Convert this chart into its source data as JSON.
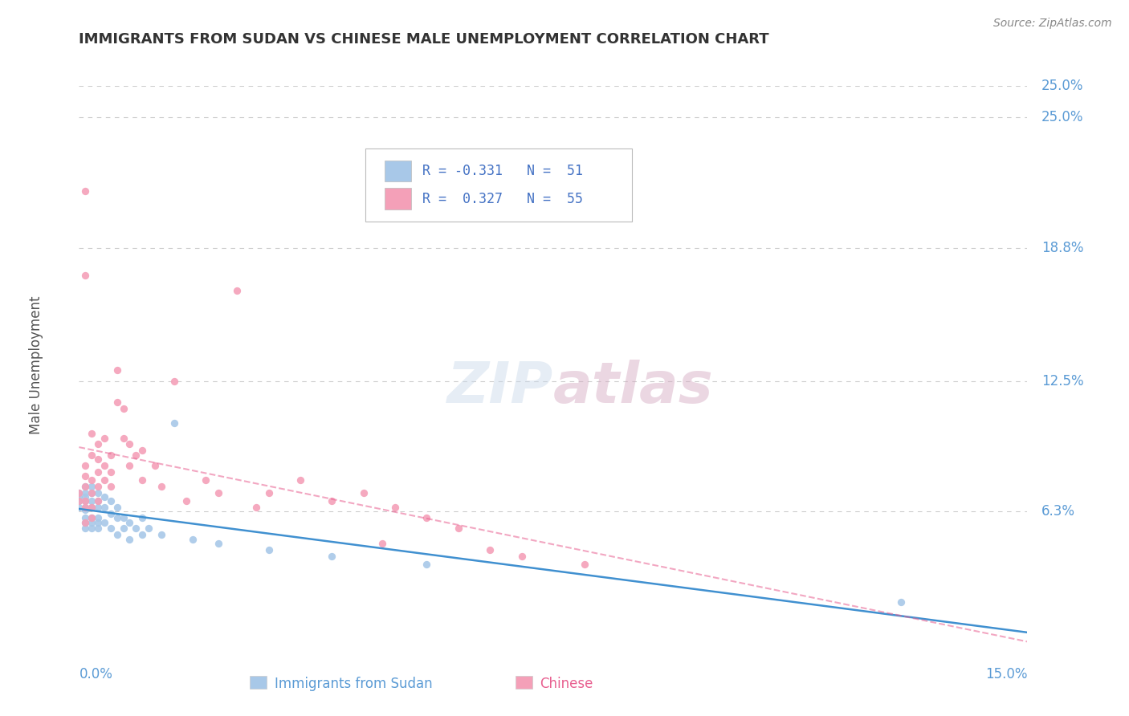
{
  "title": "IMMIGRANTS FROM SUDAN VS CHINESE MALE UNEMPLOYMENT CORRELATION CHART",
  "source": "Source: ZipAtlas.com",
  "ylabel": "Male Unemployment",
  "ytick_labels": [
    "6.3%",
    "12.5%",
    "18.8%",
    "25.0%"
  ],
  "ytick_values": [
    0.063,
    0.125,
    0.188,
    0.25
  ],
  "xmin": 0.0,
  "xmax": 0.15,
  "ymin": 0.0,
  "ymax": 0.265,
  "color_blue": "#a8c8e8",
  "color_pink": "#f4a0b8",
  "color_blue_line": "#4090d0",
  "color_pink_line": "#e86090",
  "color_axis_label": "#5b9bd5",
  "color_title": "#333333",
  "color_grid": "#cccccc",
  "color_source": "#888888",
  "color_legend_text": "#4472c4",
  "blue_x": [
    0.0,
    0.0,
    0.0,
    0.0,
    0.001,
    0.001,
    0.001,
    0.001,
    0.001,
    0.001,
    0.001,
    0.001,
    0.001,
    0.002,
    0.002,
    0.002,
    0.002,
    0.002,
    0.002,
    0.002,
    0.003,
    0.003,
    0.003,
    0.003,
    0.003,
    0.003,
    0.004,
    0.004,
    0.004,
    0.005,
    0.005,
    0.005,
    0.006,
    0.006,
    0.006,
    0.007,
    0.007,
    0.008,
    0.008,
    0.009,
    0.01,
    0.01,
    0.011,
    0.013,
    0.015,
    0.018,
    0.022,
    0.03,
    0.04,
    0.055,
    0.13
  ],
  "blue_y": [
    0.068,
    0.072,
    0.065,
    0.07,
    0.075,
    0.068,
    0.065,
    0.06,
    0.072,
    0.058,
    0.064,
    0.07,
    0.055,
    0.068,
    0.072,
    0.065,
    0.06,
    0.055,
    0.075,
    0.058,
    0.068,
    0.065,
    0.06,
    0.055,
    0.072,
    0.058,
    0.07,
    0.065,
    0.058,
    0.068,
    0.062,
    0.055,
    0.065,
    0.06,
    0.052,
    0.06,
    0.055,
    0.058,
    0.05,
    0.055,
    0.06,
    0.052,
    0.055,
    0.052,
    0.105,
    0.05,
    0.048,
    0.045,
    0.042,
    0.038,
    0.02
  ],
  "pink_x": [
    0.0,
    0.0,
    0.001,
    0.001,
    0.001,
    0.001,
    0.001,
    0.001,
    0.001,
    0.001,
    0.002,
    0.002,
    0.002,
    0.002,
    0.002,
    0.002,
    0.003,
    0.003,
    0.003,
    0.003,
    0.003,
    0.004,
    0.004,
    0.004,
    0.005,
    0.005,
    0.005,
    0.006,
    0.006,
    0.007,
    0.007,
    0.008,
    0.008,
    0.009,
    0.01,
    0.01,
    0.012,
    0.013,
    0.015,
    0.017,
    0.02,
    0.022,
    0.025,
    0.028,
    0.03,
    0.035,
    0.04,
    0.045,
    0.05,
    0.055,
    0.06,
    0.065,
    0.07,
    0.08,
    0.048
  ],
  "pink_y": [
    0.068,
    0.072,
    0.215,
    0.175,
    0.085,
    0.075,
    0.068,
    0.065,
    0.08,
    0.058,
    0.078,
    0.072,
    0.065,
    0.06,
    0.09,
    0.1,
    0.095,
    0.088,
    0.082,
    0.075,
    0.068,
    0.098,
    0.085,
    0.078,
    0.09,
    0.082,
    0.075,
    0.13,
    0.115,
    0.112,
    0.098,
    0.095,
    0.085,
    0.09,
    0.092,
    0.078,
    0.085,
    0.075,
    0.125,
    0.068,
    0.078,
    0.072,
    0.168,
    0.065,
    0.072,
    0.078,
    0.068,
    0.072,
    0.065,
    0.06,
    0.055,
    0.045,
    0.042,
    0.038,
    0.048
  ]
}
